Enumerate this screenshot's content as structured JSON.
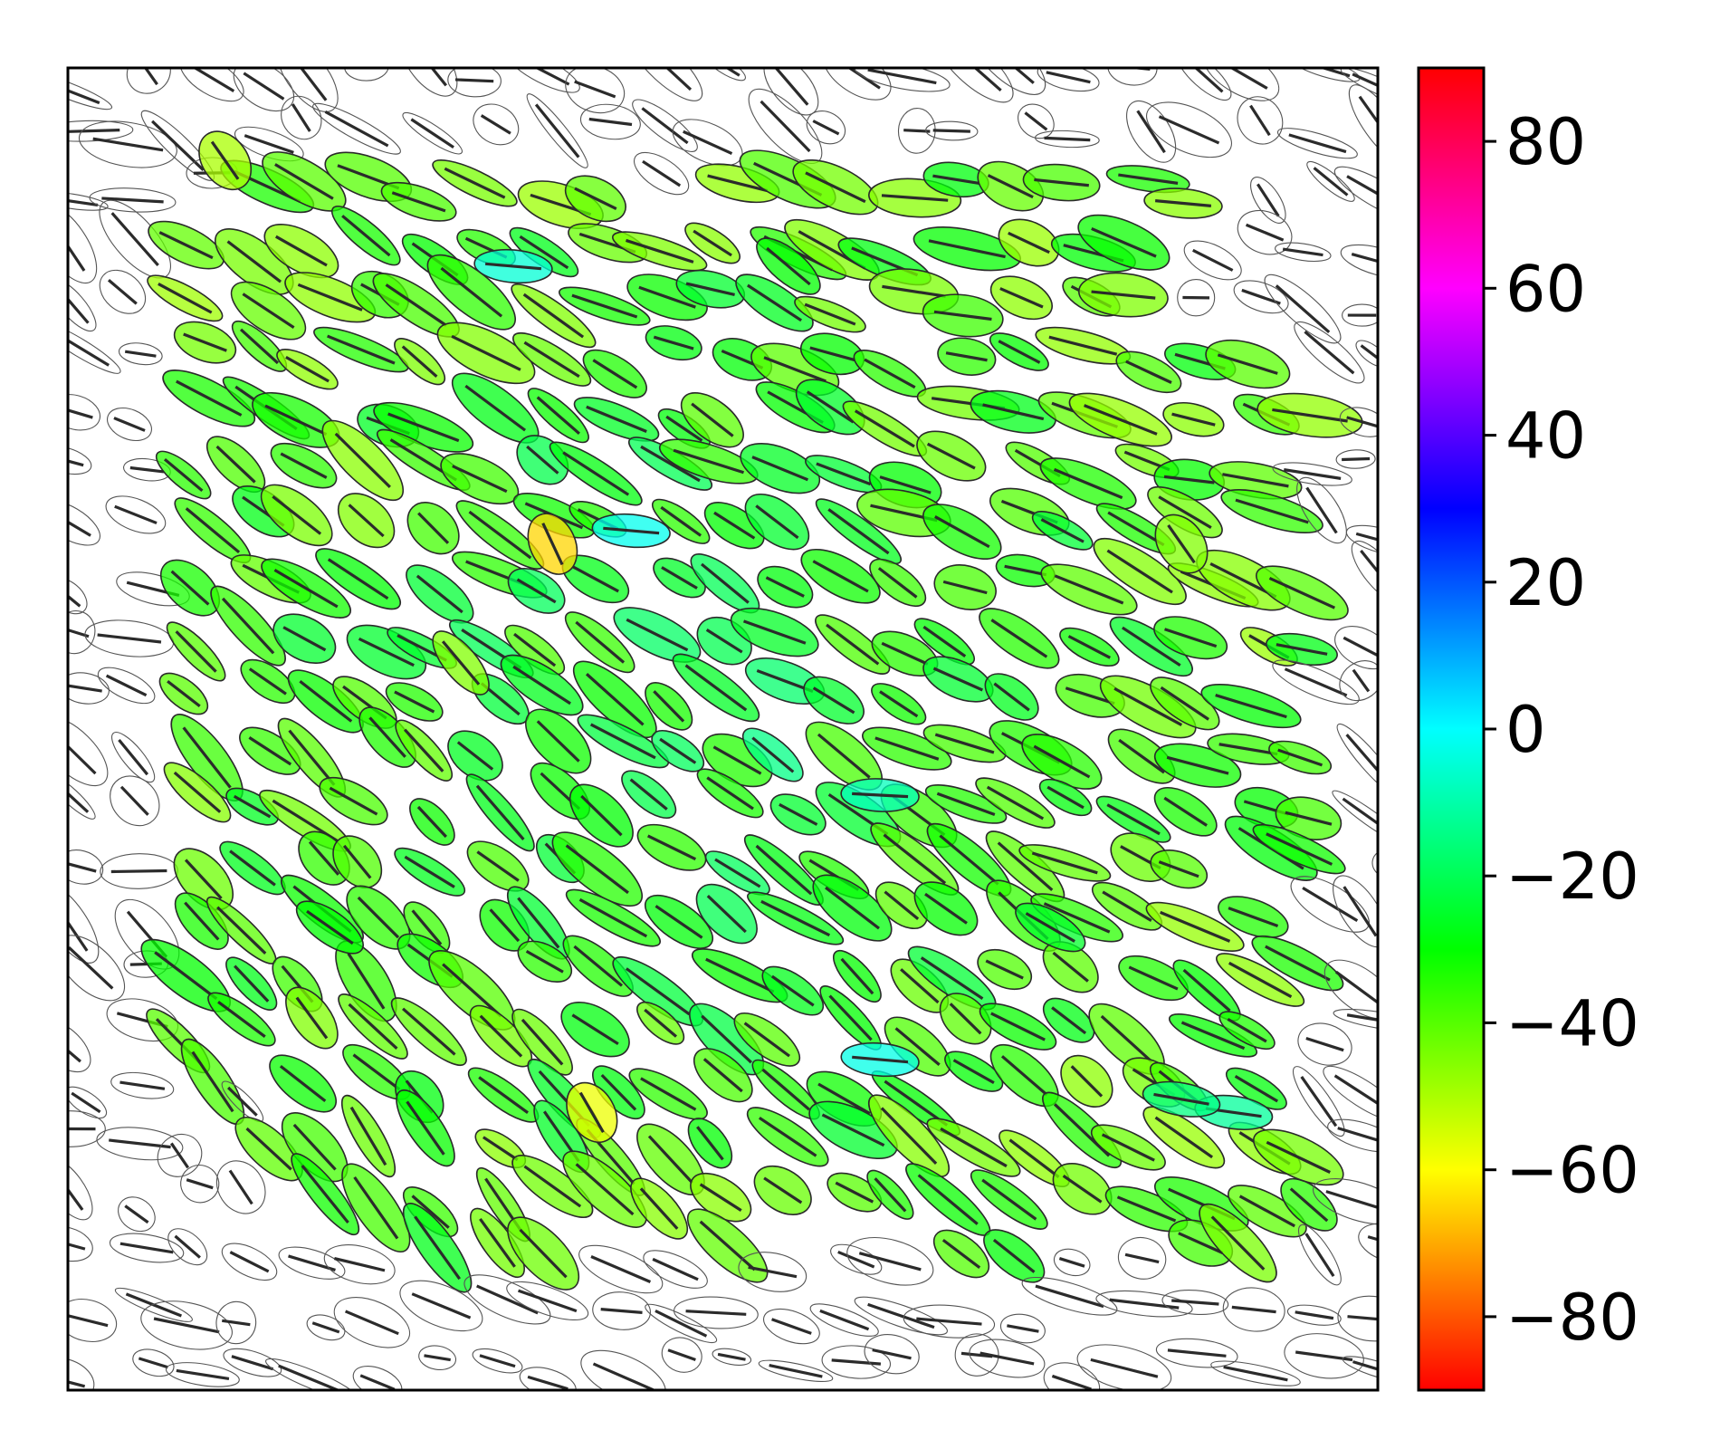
{
  "chart_data": {
    "type": "scatter",
    "title": "",
    "xlabel": "",
    "ylabel": "",
    "description": "",
    "xlim": [
      0,
      1
    ],
    "ylim": [
      0,
      1
    ],
    "axes_ticks_visible": false,
    "grid": false,
    "marker": "ellipse with orientation line",
    "colormap": "hsv",
    "colorbar": {
      "label": "",
      "range": [
        -90,
        90
      ],
      "ticks": [
        80,
        60,
        40,
        20,
        0,
        -20,
        -40,
        -60,
        -80
      ],
      "tick_labels": [
        "80",
        "60",
        "40",
        "20",
        "0",
        "−20",
        "−40",
        "−60",
        "−80"
      ],
      "position": "right"
    },
    "colored_region": "central band (approx. 0.08–0.95 x, 0.10–0.92 y); outer ellipses drawn unfilled",
    "sample_points": [
      {
        "x": 0.37,
        "y": 0.64,
        "angle": -65,
        "color_value": -65
      },
      {
        "x": 0.4,
        "y": 0.21,
        "angle": -60,
        "color_value": -58
      },
      {
        "x": 0.43,
        "y": 0.65,
        "angle": -5,
        "color_value": -2
      },
      {
        "x": 0.34,
        "y": 0.85,
        "angle": -5,
        "color_value": -5
      },
      {
        "x": 0.62,
        "y": 0.45,
        "angle": -3,
        "color_value": -8
      },
      {
        "x": 0.62,
        "y": 0.25,
        "angle": -5,
        "color_value": -3
      },
      {
        "x": 0.89,
        "y": 0.21,
        "angle": -8,
        "color_value": -12
      },
      {
        "x": 0.85,
        "y": 0.22,
        "angle": -10,
        "color_value": -15
      },
      {
        "x": 0.85,
        "y": 0.64,
        "angle": -55,
        "color_value": -45
      },
      {
        "x": 0.12,
        "y": 0.93,
        "angle": -55,
        "color_value": -50
      },
      {
        "x": 0.3,
        "y": 0.55,
        "angle": -50,
        "color_value": -45
      },
      {
        "x": 0.55,
        "y": 0.85,
        "angle": -40,
        "color_value": -30
      },
      {
        "x": 0.75,
        "y": 0.35,
        "angle": -30,
        "color_value": -25
      },
      {
        "x": 0.2,
        "y": 0.35,
        "angle": -35,
        "color_value": -30
      }
    ]
  }
}
